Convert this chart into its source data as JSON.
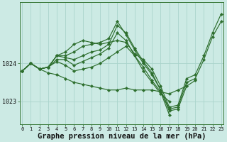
{
  "background_color": "#cceae4",
  "grid_color": "#aad4cc",
  "line_color": "#2d6e2d",
  "marker_color": "#2d6e2d",
  "xlabel": "Graphe pression niveau de la mer (hPa)",
  "xlabel_fontsize": 7.5,
  "yticks": [
    1023,
    1024
  ],
  "ylim": [
    1022.4,
    1025.6
  ],
  "xlim": [
    -0.3,
    23.3
  ],
  "xticks": [
    0,
    1,
    2,
    3,
    4,
    5,
    6,
    7,
    8,
    9,
    10,
    11,
    12,
    13,
    14,
    15,
    16,
    17,
    18,
    19,
    20,
    21,
    22,
    23
  ],
  "lines": [
    {
      "x": [
        0,
        1,
        2,
        3,
        4,
        5,
        6,
        7,
        8,
        9,
        10,
        11,
        12,
        13,
        14,
        15,
        16,
        17,
        18,
        19,
        20,
        21,
        22,
        23
      ],
      "y": [
        1023.8,
        1024.0,
        1023.85,
        1023.9,
        1024.2,
        1024.3,
        1024.5,
        1024.6,
        1024.55,
        1024.5,
        1024.55,
        1024.6,
        1024.55,
        1024.25,
        1024.1,
        1023.85,
        1023.4,
        1022.85,
        1022.9,
        1023.6,
        1023.7,
        1024.2,
        1024.8,
        1025.3
      ]
    },
    {
      "x": [
        0,
        1,
        2,
        3,
        4,
        5,
        6,
        7,
        8,
        9,
        10,
        11,
        12,
        13,
        14,
        15,
        16,
        17,
        18,
        19,
        20,
        21,
        22,
        23
      ],
      "y": [
        1023.8,
        1024.0,
        1023.85,
        1023.9,
        1024.2,
        1024.2,
        1024.3,
        1024.45,
        1024.5,
        1024.55,
        1024.65,
        1025.1,
        1024.75,
        1024.35,
        1024.0,
        1023.7,
        1023.3,
        1022.8,
        1022.85,
        1023.5,
        1023.6,
        1024.1,
        1024.7,
        1025.1
      ]
    },
    {
      "x": [
        0,
        1,
        2,
        3,
        4,
        5,
        6,
        7,
        8,
        9,
        10,
        11,
        12,
        13,
        14,
        15,
        16,
        17,
        18,
        19,
        20
      ],
      "y": [
        1023.8,
        1024.0,
        1023.85,
        1023.9,
        1024.2,
        1024.15,
        1024.1,
        1024.2,
        1024.3,
        1024.35,
        1024.5,
        1025.0,
        1024.8,
        1024.4,
        1024.05,
        1023.75,
        1023.3,
        1022.75,
        1022.8,
        1023.4,
        1023.55
      ]
    },
    {
      "x": [
        0,
        1,
        2,
        3,
        4,
        5,
        6,
        7,
        8,
        9,
        10,
        11,
        12,
        13,
        14,
        15,
        16,
        17
      ],
      "y": [
        1023.8,
        1024.0,
        1023.85,
        1023.9,
        1024.1,
        1024.1,
        1023.95,
        1024.05,
        1024.15,
        1024.25,
        1024.4,
        1024.8,
        1024.6,
        1024.2,
        1023.9,
        1023.55,
        1023.25,
        1022.65
      ]
    },
    {
      "x": [
        0,
        1,
        2,
        3,
        4,
        5,
        6,
        7,
        8,
        9,
        10,
        11,
        12,
        13,
        14,
        15,
        16,
        17
      ],
      "y": [
        1023.8,
        1024.0,
        1023.85,
        1023.9,
        1024.05,
        1023.95,
        1023.8,
        1023.85,
        1023.9,
        1024.0,
        1024.15,
        1024.3,
        1024.45,
        1024.2,
        1023.8,
        1023.5,
        1023.2,
        1023.0
      ]
    },
    {
      "x": [
        0,
        1,
        2,
        3,
        4,
        5,
        6,
        7,
        8,
        9,
        10,
        11,
        12,
        13,
        14,
        15,
        16,
        17,
        18,
        19
      ],
      "y": [
        1023.8,
        1024.0,
        1023.85,
        1023.75,
        1023.7,
        1023.6,
        1023.5,
        1023.45,
        1023.4,
        1023.35,
        1023.3,
        1023.3,
        1023.35,
        1023.3,
        1023.3,
        1023.3,
        1023.25,
        1023.2,
        1023.3,
        1023.4
      ]
    }
  ]
}
